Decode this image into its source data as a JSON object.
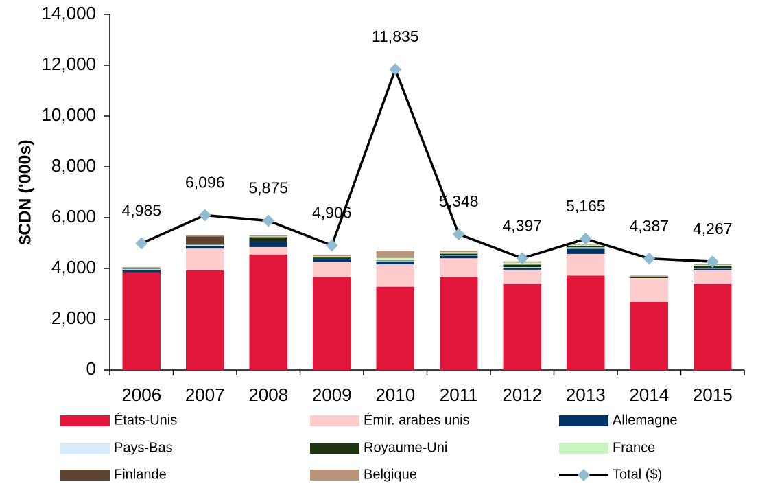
{
  "chart_data": {
    "type": "bar",
    "stacked": true,
    "y_label": "$CDN ('000s)",
    "categories": [
      "2006",
      "2007",
      "2008",
      "2009",
      "2010",
      "2011",
      "2012",
      "2013",
      "2014",
      "2015"
    ],
    "ylim": [
      0,
      14000
    ],
    "yticks": [
      0,
      {
        "value": 2000,
        "label": "2,000"
      },
      {
        "value": 4000,
        "label": "4,000"
      },
      {
        "value": 6000,
        "label": "6,000"
      },
      {
        "value": 8000,
        "label": "8,000"
      },
      {
        "value": 10000,
        "label": "10,000"
      },
      {
        "value": 12000,
        "label": "12,000"
      },
      {
        "value": 14000,
        "label": "14,000"
      }
    ],
    "series": [
      {
        "name": "États-Unis",
        "color": "#e0173a",
        "values": [
          3850,
          3920,
          4550,
          3650,
          3280,
          3650,
          3380,
          3720,
          2680,
          3380
        ]
      },
      {
        "name": "Émir. arabes unis",
        "color": "#ffcccc",
        "values": [
          0,
          860,
          290,
          600,
          880,
          750,
          570,
          850,
          920,
          560
        ]
      },
      {
        "name": "Allemagne",
        "color": "#003366",
        "values": [
          100,
          110,
          210,
          100,
          100,
          100,
          60,
          200,
          0,
          50
        ]
      },
      {
        "name": "Pays-Bas",
        "color": "#d6ecf8",
        "values": [
          20,
          20,
          0,
          30,
          30,
          40,
          40,
          60,
          20,
          30
        ]
      },
      {
        "name": "Royaume-Uni",
        "color": "#1f3311",
        "values": [
          20,
          0,
          180,
          50,
          20,
          40,
          100,
          40,
          30,
          80
        ]
      },
      {
        "name": "France",
        "color": "#c8f5c0",
        "values": [
          30,
          20,
          30,
          50,
          100,
          60,
          80,
          60,
          30,
          30
        ]
      },
      {
        "name": "Finlande",
        "color": "#5c4430",
        "values": [
          0,
          330,
          0,
          0,
          0,
          0,
          0,
          0,
          0,
          0
        ]
      },
      {
        "name": "Belgique",
        "color": "#b8957a",
        "values": [
          30,
          50,
          40,
          50,
          270,
          60,
          50,
          40,
          40,
          30
        ]
      },
      {
        "name": "Total ($)",
        "type": "line",
        "color": "#000000",
        "marker_color": "#8fbcd0",
        "values": [
          4985,
          6096,
          5875,
          4906,
          11835,
          5348,
          4397,
          5165,
          4387,
          4267
        ],
        "value_labels": [
          "4,985",
          "6,096",
          "5,875",
          "4,906",
          "11,835",
          "5,348",
          "4,397",
          "5,165",
          "4,387",
          "4,267"
        ]
      }
    ]
  }
}
